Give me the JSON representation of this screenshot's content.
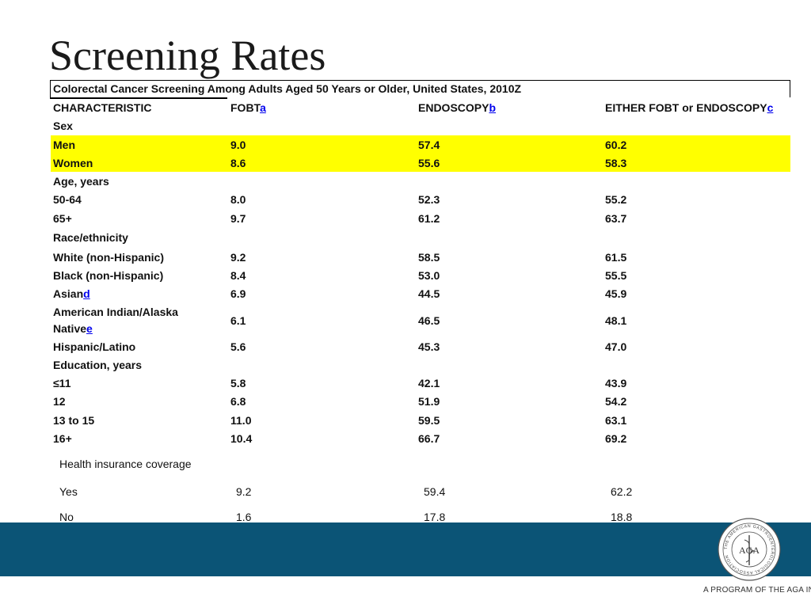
{
  "title": "Screening Rates",
  "table": {
    "caption": "Colorectal Cancer Screening Among Adults Aged 50 Years or Older, United States, 2010Z",
    "headers": [
      {
        "text": "CHARACTERISTIC",
        "note": ""
      },
      {
        "text": "FOBT",
        "note": "a"
      },
      {
        "text": "ENDOSCOPY",
        "note": "b"
      },
      {
        "text": "EITHER FOBT or ENDOSCOPY",
        "note": "c"
      }
    ],
    "sections": {
      "sex": "Sex",
      "age": "Age, years",
      "race": "Race/ethnicity",
      "education": "Education, years",
      "insurance": "Health insurance coverage"
    },
    "rows": {
      "men": {
        "label": "Men",
        "fobt": "9.0",
        "endo": "57.4",
        "either": "60.2"
      },
      "women": {
        "label": "Women",
        "fobt": "8.6",
        "endo": "55.6",
        "either": "58.3"
      },
      "age_50_64": {
        "label": "50-64",
        "fobt": "8.0",
        "endo": "52.3",
        "either": "55.2"
      },
      "age_65": {
        "label": "65+",
        "fobt": "9.7",
        "endo": "61.2",
        "either": "63.7"
      },
      "white": {
        "label": "White (non-Hispanic)",
        "fobt": "9.2",
        "endo": "58.5",
        "either": "61.5"
      },
      "black": {
        "label": "Black (non-Hispanic)",
        "fobt": "8.4",
        "endo": "53.0",
        "either": "55.5"
      },
      "asian": {
        "label": "Asian",
        "note": "d",
        "fobt": "6.9",
        "endo": "44.5",
        "either": "45.9"
      },
      "aian": {
        "label": "American Indian/Alaska Native",
        "note": "e",
        "fobt": "6.1",
        "endo": "46.5",
        "either": "48.1"
      },
      "hispanic": {
        "label": "Hispanic/Latino",
        "fobt": "5.6",
        "endo": "45.3",
        "either": "47.0"
      },
      "edu_11": {
        "label": "≤11",
        "fobt": "5.8",
        "endo": "42.1",
        "either": "43.9"
      },
      "edu_12": {
        "label": "12",
        "fobt": "6.8",
        "endo": "51.9",
        "either": "54.2"
      },
      "edu_13_15": {
        "label": "13 to 15",
        "fobt": "11.0",
        "endo": "59.5",
        "either": "63.1"
      },
      "edu_16": {
        "label": "16+",
        "fobt": "10.4",
        "endo": "66.7",
        "either": "69.2"
      },
      "ins_yes": {
        "label": "Yes",
        "fobt": "9.2",
        "endo": "59.4",
        "either": "62.2"
      },
      "ins_no": {
        "label": "No",
        "fobt": "1.6",
        "endo": "17.8",
        "either": "18.8"
      }
    }
  },
  "footer": {
    "tagline": "A PROGRAM OF THE AGA INSTITUTE",
    "logo_letters": "AGA",
    "logo_ring_text": "THE AMERICAN GASTROENTEROLOGICAL ASSOCIATION",
    "band_color": "#0b5476",
    "highlight_color": "#ffff00"
  }
}
